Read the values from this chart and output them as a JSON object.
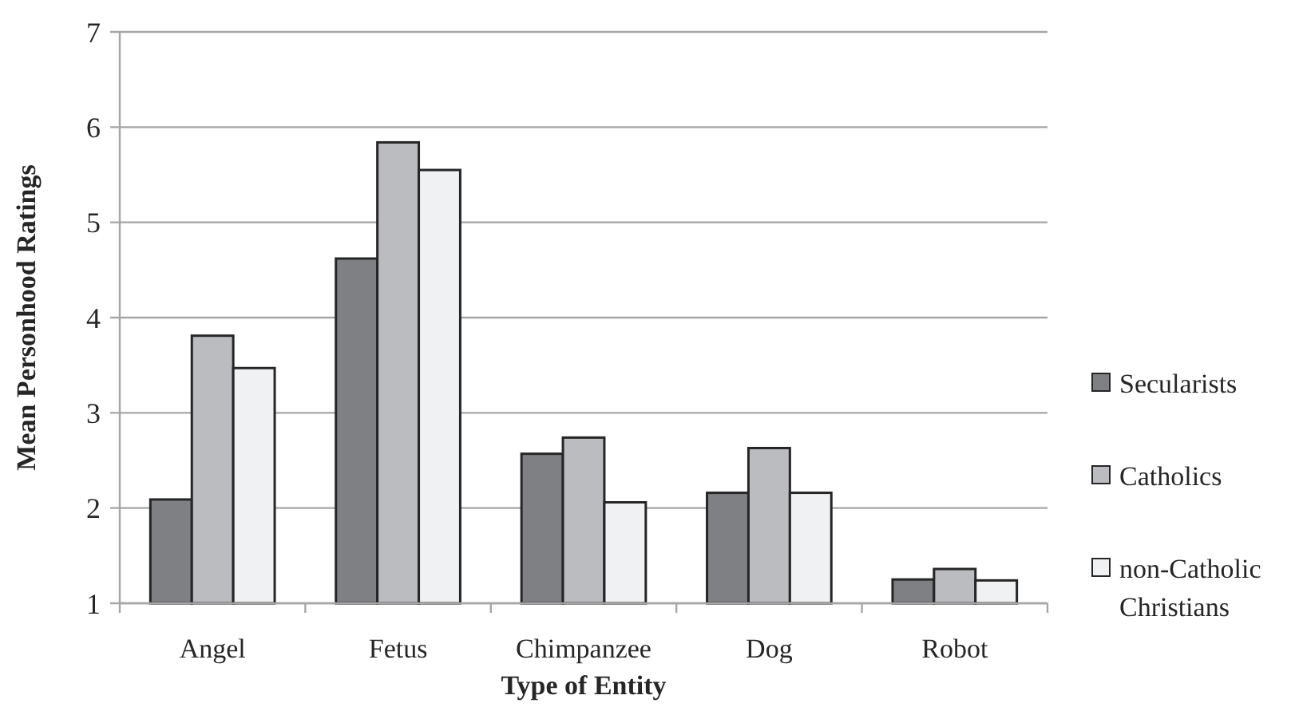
{
  "chart_data": {
    "type": "bar",
    "xlabel": "Type of Entity",
    "ylabel": "Mean Personhood Ratings",
    "categories": [
      "Angel",
      "Fetus",
      "Chimpanzee",
      "Dog",
      "Robot"
    ],
    "series": [
      {
        "name": "Secularists",
        "color": "#7f8084",
        "values": [
          2.09,
          4.62,
          2.57,
          2.16,
          1.25
        ]
      },
      {
        "name": "Catholics",
        "color": "#bbbcc0",
        "values": [
          3.81,
          5.84,
          2.74,
          2.63,
          1.36
        ]
      },
      {
        "name": "non-Catholic Christians",
        "color": "#f0f1f3",
        "values": [
          3.47,
          5.55,
          2.06,
          2.16,
          1.24
        ]
      }
    ],
    "ylim": [
      1,
      7
    ],
    "yticks": [
      1,
      2,
      3,
      4,
      5,
      6,
      7
    ],
    "grid": "y",
    "legend": "right"
  }
}
